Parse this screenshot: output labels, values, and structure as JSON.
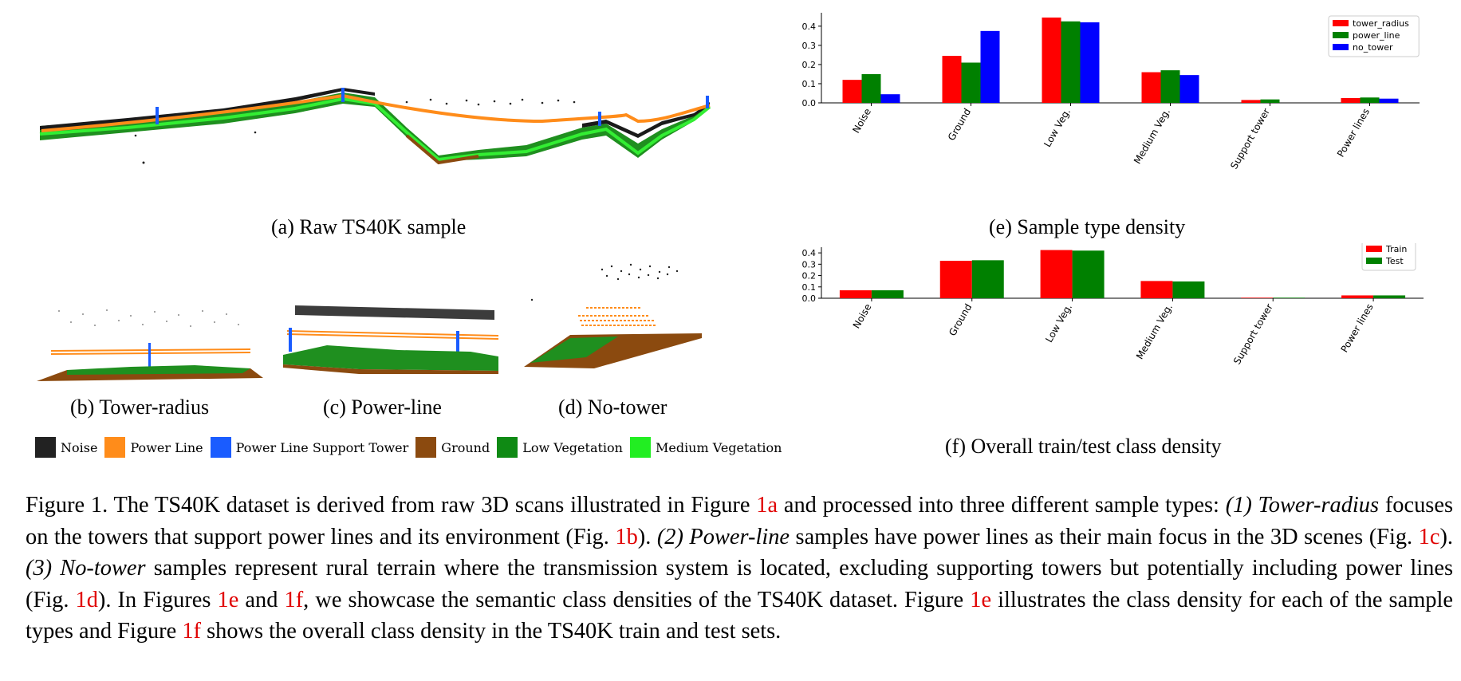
{
  "figure": {
    "subcaptions": {
      "a": "(a) Raw TS40K sample",
      "b": "(b) Tower-radius",
      "c": "(c) Power-line",
      "d": "(d) No-tower",
      "e": "(e) Sample type density",
      "f": "(f) Overall train/test class density"
    },
    "class_legend": [
      {
        "label": "Noise",
        "color": "#222222"
      },
      {
        "label": "Power Line",
        "color": "#ff8c1a"
      },
      {
        "label": "Power Line Support Tower",
        "color": "#1a5cff"
      },
      {
        "label": "Ground",
        "color": "#8b4a0f"
      },
      {
        "label": "Low Vegetation",
        "color": "#0f8a14"
      },
      {
        "label": "Medium Vegetation",
        "color": "#22ee22"
      }
    ]
  },
  "chart_data": [
    {
      "type": "bar",
      "categories": [
        "Noise",
        "Ground",
        "Low Veg.",
        "Medium Veg.",
        "Support tower",
        "Power lines"
      ],
      "series": [
        {
          "name": "tower_radius",
          "color": "#ff0000",
          "values": [
            0.12,
            0.245,
            0.445,
            0.16,
            0.015,
            0.025
          ]
        },
        {
          "name": "power_line",
          "color": "#008000",
          "values": [
            0.15,
            0.21,
            0.425,
            0.17,
            0.018,
            0.028
          ]
        },
        {
          "name": "no_tower",
          "color": "#0000ff",
          "values": [
            0.045,
            0.375,
            0.42,
            0.145,
            0.0,
            0.022
          ]
        }
      ],
      "yticks": [
        "0.0",
        "0.1",
        "0.2",
        "0.3",
        "0.4"
      ],
      "ylim": [
        0,
        0.47
      ],
      "legend_position": "top-right"
    },
    {
      "type": "bar",
      "categories": [
        "Noise",
        "Ground",
        "Low Veg.",
        "Medium Veg.",
        "Support tower",
        "Power lines"
      ],
      "series": [
        {
          "name": "Train",
          "color": "#ff0000",
          "values": [
            0.07,
            0.33,
            0.425,
            0.152,
            0.005,
            0.025
          ]
        },
        {
          "name": "Test",
          "color": "#008000",
          "values": [
            0.07,
            0.335,
            0.42,
            0.148,
            0.005,
            0.025
          ]
        }
      ],
      "yticks": [
        "0.0",
        "0.1",
        "0.2",
        "0.3",
        "0.4"
      ],
      "ylim": [
        0,
        0.45
      ],
      "legend_position": "top-right"
    }
  ],
  "caption": {
    "segments": [
      {
        "text": "Figure 1.  The TS40K dataset is derived from raw 3D scans illustrated in Figure ",
        "style": "normal"
      },
      {
        "text": "1a",
        "style": "ref"
      },
      {
        "text": " and processed into three different sample types: ",
        "style": "normal"
      },
      {
        "text": "(1) Tower-radius",
        "style": "em"
      },
      {
        "text": " focuses on the towers that support power lines and its environment (Fig. ",
        "style": "normal"
      },
      {
        "text": "1b",
        "style": "ref"
      },
      {
        "text": ").  ",
        "style": "normal"
      },
      {
        "text": "(2) Power-line",
        "style": "em"
      },
      {
        "text": " samples have power lines as their main focus in the 3D scenes (Fig. ",
        "style": "normal"
      },
      {
        "text": "1c",
        "style": "ref"
      },
      {
        "text": ").  ",
        "style": "normal"
      },
      {
        "text": "(3) No-tower",
        "style": "em"
      },
      {
        "text": " samples represent rural terrain where the transmission system is located, excluding supporting towers but potentially including power lines (Fig. ",
        "style": "normal"
      },
      {
        "text": "1d",
        "style": "ref"
      },
      {
        "text": ").  In Figures ",
        "style": "normal"
      },
      {
        "text": "1e",
        "style": "ref"
      },
      {
        "text": " and ",
        "style": "normal"
      },
      {
        "text": "1f",
        "style": "ref"
      },
      {
        "text": ", we showcase the semantic class densities of the TS40K dataset.  Figure ",
        "style": "normal"
      },
      {
        "text": "1e",
        "style": "ref"
      },
      {
        "text": " illustrates the class density for each of the sample types and Figure ",
        "style": "normal"
      },
      {
        "text": "1f",
        "style": "ref"
      },
      {
        "text": " shows the overall class density in the TS40K train and test sets.",
        "style": "normal"
      }
    ]
  }
}
